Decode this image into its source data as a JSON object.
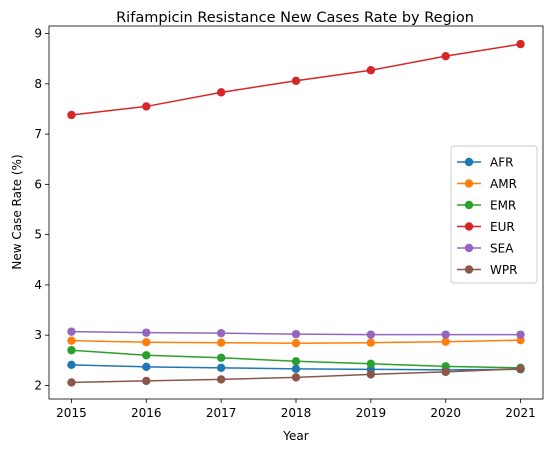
{
  "chart_data": {
    "type": "line",
    "title": "Rifampicin Resistance New Cases Rate by Region",
    "xlabel": "Year",
    "ylabel": "New Case Rate (%)",
    "x": [
      "2015",
      "2016",
      "2017",
      "2018",
      "2019",
      "2020",
      "2021"
    ],
    "xlim": [
      2014.7,
      2021.3
    ],
    "ylim": [
      1.73,
      9.15
    ],
    "yticks": [
      "2",
      "3",
      "4",
      "5",
      "6",
      "7",
      "8",
      "9"
    ],
    "grid": false,
    "legend_position": "center-right",
    "series": [
      {
        "name": "AFR",
        "color": "#1f77b4",
        "values": [
          2.41,
          2.37,
          2.35,
          2.33,
          2.32,
          2.31,
          2.32
        ]
      },
      {
        "name": "AMR",
        "color": "#ff7f0e",
        "values": [
          2.89,
          2.86,
          2.85,
          2.84,
          2.85,
          2.87,
          2.9
        ]
      },
      {
        "name": "EMR",
        "color": "#2ca02c",
        "values": [
          2.7,
          2.6,
          2.55,
          2.48,
          2.43,
          2.38,
          2.35
        ]
      },
      {
        "name": "EUR",
        "color": "#d62728",
        "values": [
          7.38,
          7.55,
          7.83,
          8.06,
          8.27,
          8.55,
          8.79
        ]
      },
      {
        "name": "SEA",
        "color": "#9467bd",
        "values": [
          3.07,
          3.05,
          3.04,
          3.02,
          3.01,
          3.01,
          3.01
        ]
      },
      {
        "name": "WPR",
        "color": "#8c564b",
        "values": [
          2.06,
          2.09,
          2.12,
          2.16,
          2.22,
          2.27,
          2.33
        ]
      }
    ]
  }
}
